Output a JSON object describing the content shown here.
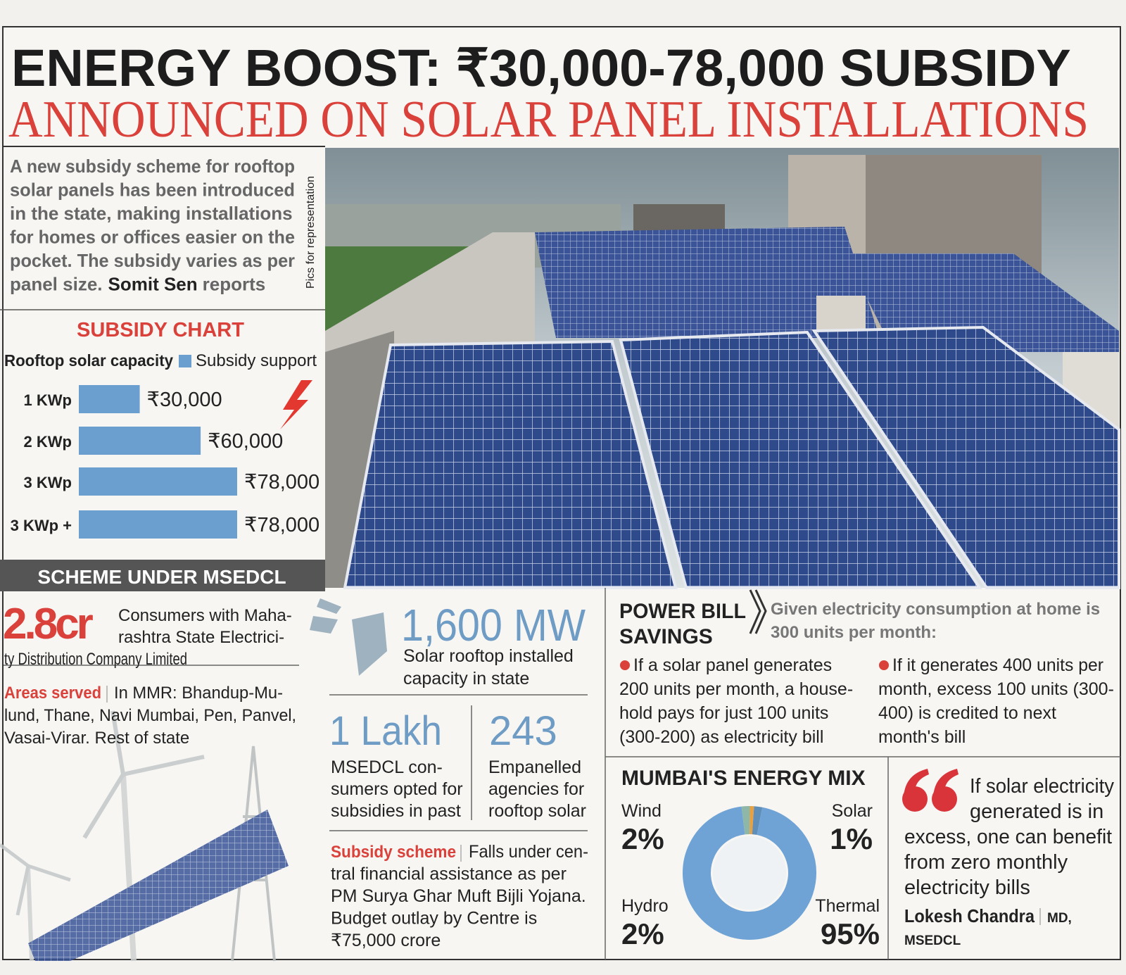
{
  "headline": {
    "line1": "ENERGY BOOST: ₹30,000-78,000 SUBSIDY",
    "line2": "ANNOUNCED ON SOLAR PANEL INSTALLATIONS"
  },
  "intro": {
    "lines": [
      "A new subsidy scheme for rooftop",
      "solar panels has been introduced",
      "in the state, making installations",
      "for homes or offices easier on the",
      "pocket. The subsidy varies as per",
      "panel size."
    ],
    "byline": "Somit Sen",
    "byline_suffix": "reports"
  },
  "photo_credit": "Pics for representation",
  "subsidy_chart": {
    "type": "bar",
    "title": "SUBSIDY CHART",
    "axis_label": "Rooftop solar capacity",
    "legend": "Subsidy support",
    "color": "#6a9fd0",
    "categories": [
      "1 KWp",
      "2 KWp",
      "3 KWp",
      "3 KWp +"
    ],
    "values": [
      30000,
      60000,
      78000,
      78000
    ],
    "value_labels": [
      "₹30,000",
      "₹60,000",
      "₹78,000",
      "₹78,000"
    ]
  },
  "scheme": {
    "banner": "SCHEME UNDER MSEDCL",
    "consumers": {
      "figure": "2.8cr",
      "lines": [
        "Consumers with Maha-",
        "rashtra State Electrici-",
        "ty Distribution Company Limited"
      ]
    },
    "areas": {
      "label": "Areas served",
      "lines": [
        "In MMR: Bhandup-Mu-",
        "lund, Thane, Navi Mumbai, Pen, Panvel,",
        "Vasai-Virar. Rest of state"
      ]
    },
    "capacity": {
      "figure": "1,600 MW",
      "lines": [
        "Solar rooftop installed",
        "capacity in state"
      ]
    },
    "opted": {
      "figure": "1 Lakh",
      "lines": [
        "MSEDCL con-",
        "sumers opted for",
        "subsidies in past"
      ]
    },
    "agencies": {
      "figure": "243",
      "lines": [
        "Empanelled",
        "agencies for",
        "rooftop solar"
      ]
    },
    "subsidy_scheme": {
      "label": "Subsidy scheme",
      "lines": [
        "Falls under cen-",
        "tral financial assistance as per",
        "PM Surya Ghar Muft Bijli Yojana.",
        "Budget outlay by Centre is",
        "₹75,000 crore"
      ]
    }
  },
  "power_bill": {
    "title_lines": [
      "POWER BILL",
      "SAVINGS"
    ],
    "intro_lines": [
      "Given electricity consumption at home is",
      "300 units per month:"
    ],
    "points": [
      [
        "If a solar panel generates",
        "200 units per month, a house-",
        "hold pays for just 100 units",
        "(300-200) as electricity bill"
      ],
      [
        "If it generates 400 units per",
        "month, excess 100 units (300-",
        "400) is credited to next",
        "month's bill"
      ]
    ]
  },
  "energy_mix": {
    "type": "pie",
    "title": "MUMBAI'S ENERGY MIX",
    "categories": [
      "Wind",
      "Solar",
      "Hydro",
      "Thermal"
    ],
    "values": [
      2,
      1,
      2,
      95
    ],
    "value_labels": [
      "2%",
      "1%",
      "2%",
      "95%"
    ],
    "colors": [
      "#8fb7a8",
      "#e8a040",
      "#5f8fb8",
      "#6fa3d6"
    ]
  },
  "quote": {
    "lines": [
      "If solar electricity",
      "generated is in",
      "excess, one can benefit",
      "from zero monthly",
      "electricity bills"
    ],
    "speaker": "Lokesh Chandra",
    "role_lines": [
      "MD,",
      "MSEDCL"
    ]
  }
}
